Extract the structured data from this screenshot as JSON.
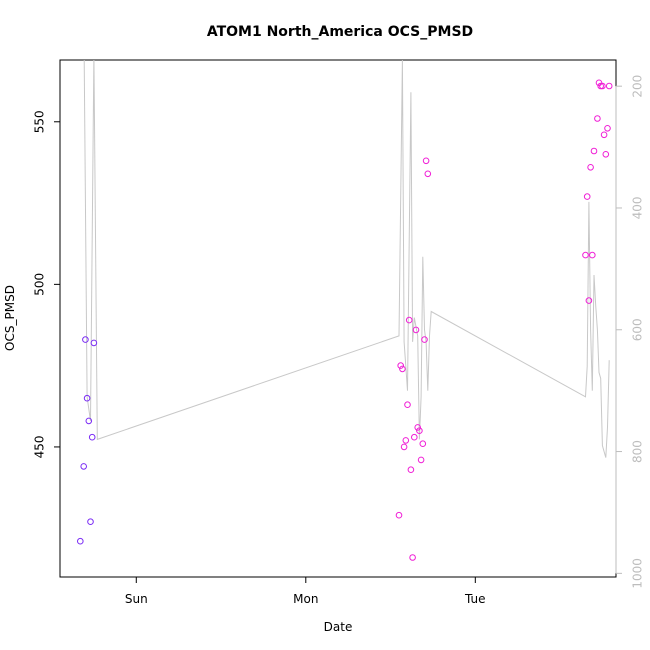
{
  "chart_data": {
    "type": "scatter",
    "title": "ATOM1 North_America OCS_PMSD",
    "xlabel": "Date",
    "ylabel": "OCS_PMSD",
    "x_ticks": [
      "Sun",
      "Mon",
      "Tue"
    ],
    "x_range_days": [
      -0.45,
      2.83
    ],
    "x_tick_positions_days": [
      0,
      1,
      2
    ],
    "y_ticks": [
      450,
      500,
      550
    ],
    "ylim": [
      410,
      569
    ],
    "y2_ticks": [
      200,
      400,
      600,
      800,
      1000
    ],
    "y2lim": [
      1006,
      157
    ],
    "grid": false,
    "colors": {
      "points_early": "#7b2cf5",
      "points_late": "#f01fd6",
      "line": "#c8c8c8",
      "axis": "#000000",
      "right_axis": "#bdbdbd"
    },
    "series": [
      {
        "kind": "points",
        "x": [
          -0.33,
          -0.31,
          -0.3,
          -0.29,
          -0.28,
          -0.27,
          -0.26,
          -0.25,
          1.55,
          1.56,
          1.57,
          1.58,
          1.59,
          1.6,
          1.61,
          1.62,
          1.63,
          1.64,
          1.65,
          1.66,
          1.67,
          1.68,
          1.69,
          1.7,
          1.71,
          1.72,
          2.65,
          2.66,
          2.67,
          2.68,
          2.69,
          2.7,
          2.72,
          2.73,
          2.74,
          2.75,
          2.76,
          2.77,
          2.78,
          2.79
        ],
        "y": [
          421,
          444,
          483,
          465,
          458,
          427,
          453,
          482,
          429,
          475,
          474,
          450,
          452,
          463,
          489,
          443,
          416,
          453,
          486,
          456,
          455,
          446,
          451,
          483,
          538,
          534,
          509,
          527,
          495,
          536,
          509,
          541,
          551,
          562,
          561,
          561,
          546,
          540,
          548,
          561
        ]
      },
      {
        "kind": "line",
        "x": [
          -0.33,
          -0.31,
          -0.29,
          -0.27,
          -0.25,
          -0.23,
          1.55,
          1.57,
          1.58,
          1.6,
          1.62,
          1.63,
          1.64,
          1.66,
          1.67,
          1.68,
          1.69,
          1.7,
          1.71,
          1.72,
          1.73,
          1.74,
          2.65,
          2.66,
          2.67,
          2.68,
          2.69,
          2.7,
          2.71,
          2.72,
          2.73,
          2.74,
          2.75,
          2.76,
          2.77,
          2.78,
          2.79
        ],
        "y": [
          148,
          60,
          710,
          750,
          148,
          780,
          610,
          156,
          620,
          700,
          210,
          620,
          580,
          610,
          780,
          710,
          480,
          600,
          620,
          700,
          610,
          570,
          710,
          660,
          390,
          600,
          700,
          510,
          560,
          600,
          670,
          680,
          790,
          800,
          810,
          760,
          650
        ]
      }
    ]
  }
}
